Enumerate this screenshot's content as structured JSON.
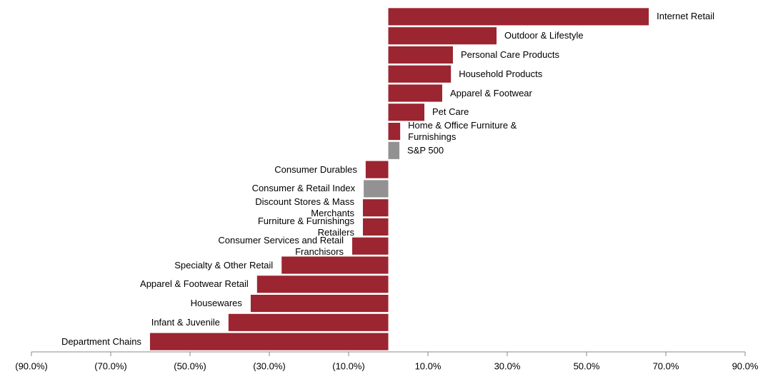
{
  "chart_data": {
    "type": "hbar",
    "categories": [
      "Internet Retail",
      "Outdoor & Lifestyle",
      "Personal Care Products",
      "Household Products",
      "Apparel & Footwear",
      "Pet Care",
      "Home & Office Furniture & Furnishings",
      "S&P 500",
      "Consumer Durables",
      "Consumer & Retail Index",
      "Discount Stores & Mass Merchants",
      "Furniture & Furnishings Retailers",
      "Consumer Services and Retail Franchisors",
      "Specialty & Other Retail",
      "Apparel & Footwear Retail",
      "Housewares",
      "Infant & Juvenile",
      "Department Chains"
    ],
    "values": [
      65.7,
      27.3,
      16.3,
      15.8,
      13.6,
      9.1,
      3.0,
      2.8,
      -5.7,
      -6.2,
      -6.4,
      -6.4,
      -9.1,
      -26.9,
      -33.1,
      -34.7,
      -40.3,
      -60.1
    ],
    "colors": [
      "#9b2530",
      "#9b2530",
      "#9b2530",
      "#9b2530",
      "#9b2530",
      "#9b2530",
      "#9b2530",
      "#929292",
      "#9b2530",
      "#929292",
      "#9b2530",
      "#9b2530",
      "#9b2530",
      "#9b2530",
      "#9b2530",
      "#9b2530",
      "#9b2530",
      "#9b2530"
    ],
    "xlim": [
      -90,
      90
    ],
    "xticks": [
      {
        "value": -90,
        "label": "(90.0%)"
      },
      {
        "value": -70,
        "label": "(70.0%)"
      },
      {
        "value": -50,
        "label": "(50.0%)"
      },
      {
        "value": -30,
        "label": "(30.0%)"
      },
      {
        "value": -10,
        "label": "(10.0%)"
      },
      {
        "value": 10,
        "label": "10.0%"
      },
      {
        "value": 30,
        "label": "30.0%"
      },
      {
        "value": 50,
        "label": "50.0%"
      },
      {
        "value": 70,
        "label": "70.0%"
      },
      {
        "value": 90,
        "label": "90.0%"
      }
    ]
  }
}
